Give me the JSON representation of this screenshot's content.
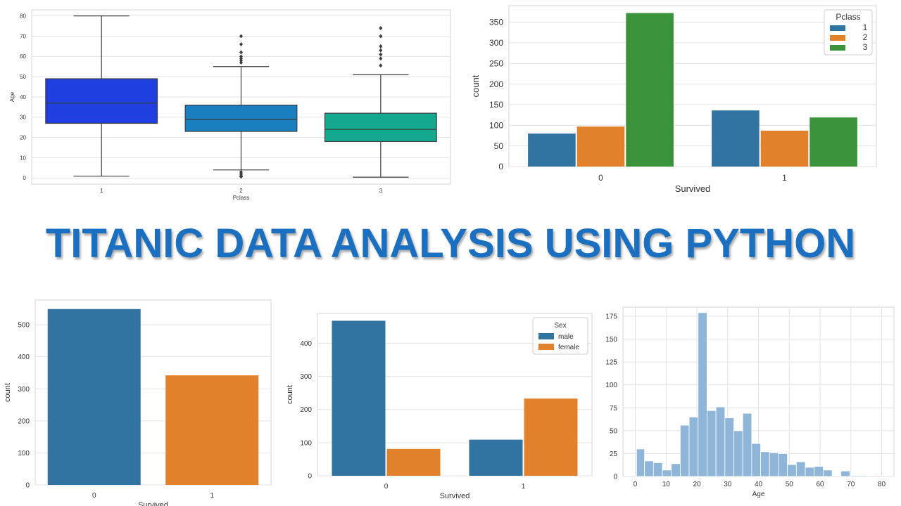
{
  "title": "TITANIC DATA ANALYSIS USING PYTHON",
  "chart_data": [
    {
      "type": "box",
      "xlabel": "Pclass",
      "ylabel": "Age",
      "categories": [
        "1",
        "2",
        "3"
      ],
      "ylim": [
        -3,
        83
      ],
      "yticks": [
        0,
        10,
        20,
        30,
        40,
        50,
        60,
        70,
        80
      ],
      "boxes": [
        {
          "category": "1",
          "whisker_low": 0.92,
          "q1": 27,
          "median": 37,
          "q3": 49,
          "whisker_high": 80,
          "outliers": [],
          "color": "#1f3fe0"
        },
        {
          "category": "2",
          "whisker_low": 4,
          "q1": 23,
          "median": 29,
          "q3": 36,
          "whisker_high": 55,
          "outliers": [
            0.67,
            0.83,
            1,
            2,
            2,
            3,
            57,
            58,
            59,
            60,
            62,
            66,
            70
          ],
          "color": "#1a7fbf"
        },
        {
          "category": "3",
          "whisker_low": 0.42,
          "q1": 18,
          "median": 24,
          "q3": 32,
          "whisker_high": 51,
          "outliers": [
            55.5,
            59,
            61,
            63,
            65,
            70,
            74
          ],
          "color": "#14a88f"
        }
      ],
      "grid": true
    },
    {
      "type": "bar",
      "xlabel": "Survived",
      "ylabel": "count",
      "categories": [
        "0",
        "1"
      ],
      "ylim": [
        0,
        390
      ],
      "yticks": [
        0,
        50,
        100,
        150,
        200,
        250,
        300,
        350
      ],
      "legend_title": "Pclass",
      "legend_position": "top-right",
      "series": [
        {
          "name": "1",
          "values": [
            80,
            136
          ],
          "color": "#3274a1"
        },
        {
          "name": "2",
          "values": [
            97,
            87
          ],
          "color": "#e1812c"
        },
        {
          "name": "3",
          "values": [
            372,
            119
          ],
          "color": "#3a923a"
        }
      ],
      "grid": true
    },
    {
      "type": "bar",
      "xlabel": "Survived",
      "ylabel": "count",
      "categories": [
        "0",
        "1"
      ],
      "ylim": [
        0,
        577
      ],
      "yticks": [
        0,
        100,
        200,
        300,
        400,
        500
      ],
      "values": [
        549,
        342
      ],
      "colors": [
        "#3274a1",
        "#e1812c"
      ],
      "grid": true
    },
    {
      "type": "bar",
      "xlabel": "Survived",
      "ylabel": "count",
      "categories": [
        "0",
        "1"
      ],
      "ylim": [
        0,
        490
      ],
      "yticks": [
        0,
        100,
        200,
        300,
        400
      ],
      "legend_title": "Sex",
      "legend_position": "top-right",
      "series": [
        {
          "name": "male",
          "values": [
            468,
            109
          ],
          "color": "#3274a1"
        },
        {
          "name": "female",
          "values": [
            81,
            233
          ],
          "color": "#e1812c"
        }
      ],
      "grid": true
    },
    {
      "type": "histogram",
      "xlabel": "Age",
      "ylabel": "",
      "xlim": [
        -4,
        84
      ],
      "ylim": [
        0,
        185
      ],
      "xticks": [
        0,
        10,
        20,
        30,
        40,
        50,
        60,
        70,
        80
      ],
      "yticks": [
        0,
        25,
        50,
        75,
        100,
        125,
        150,
        175
      ],
      "bin_edges": [
        0.42,
        3.0,
        5.9,
        8.8,
        11.7,
        14.6,
        17.5,
        20.4,
        23.3,
        26.2,
        29.1,
        32.0,
        34.9,
        37.8,
        40.7,
        43.6,
        46.5,
        49.4,
        52.3,
        55.2,
        58.1,
        61.0,
        63.9,
        66.8,
        69.7,
        72.6,
        75.5,
        78.4,
        80.0
      ],
      "counts": [
        30,
        17,
        15,
        7,
        14,
        56,
        65,
        179,
        72,
        76,
        64,
        50,
        69,
        36,
        27,
        26,
        25,
        13,
        16,
        10,
        11,
        7,
        0,
        6,
        1,
        1,
        0,
        1
      ],
      "color": "#8fb6d9",
      "grid": true
    }
  ]
}
